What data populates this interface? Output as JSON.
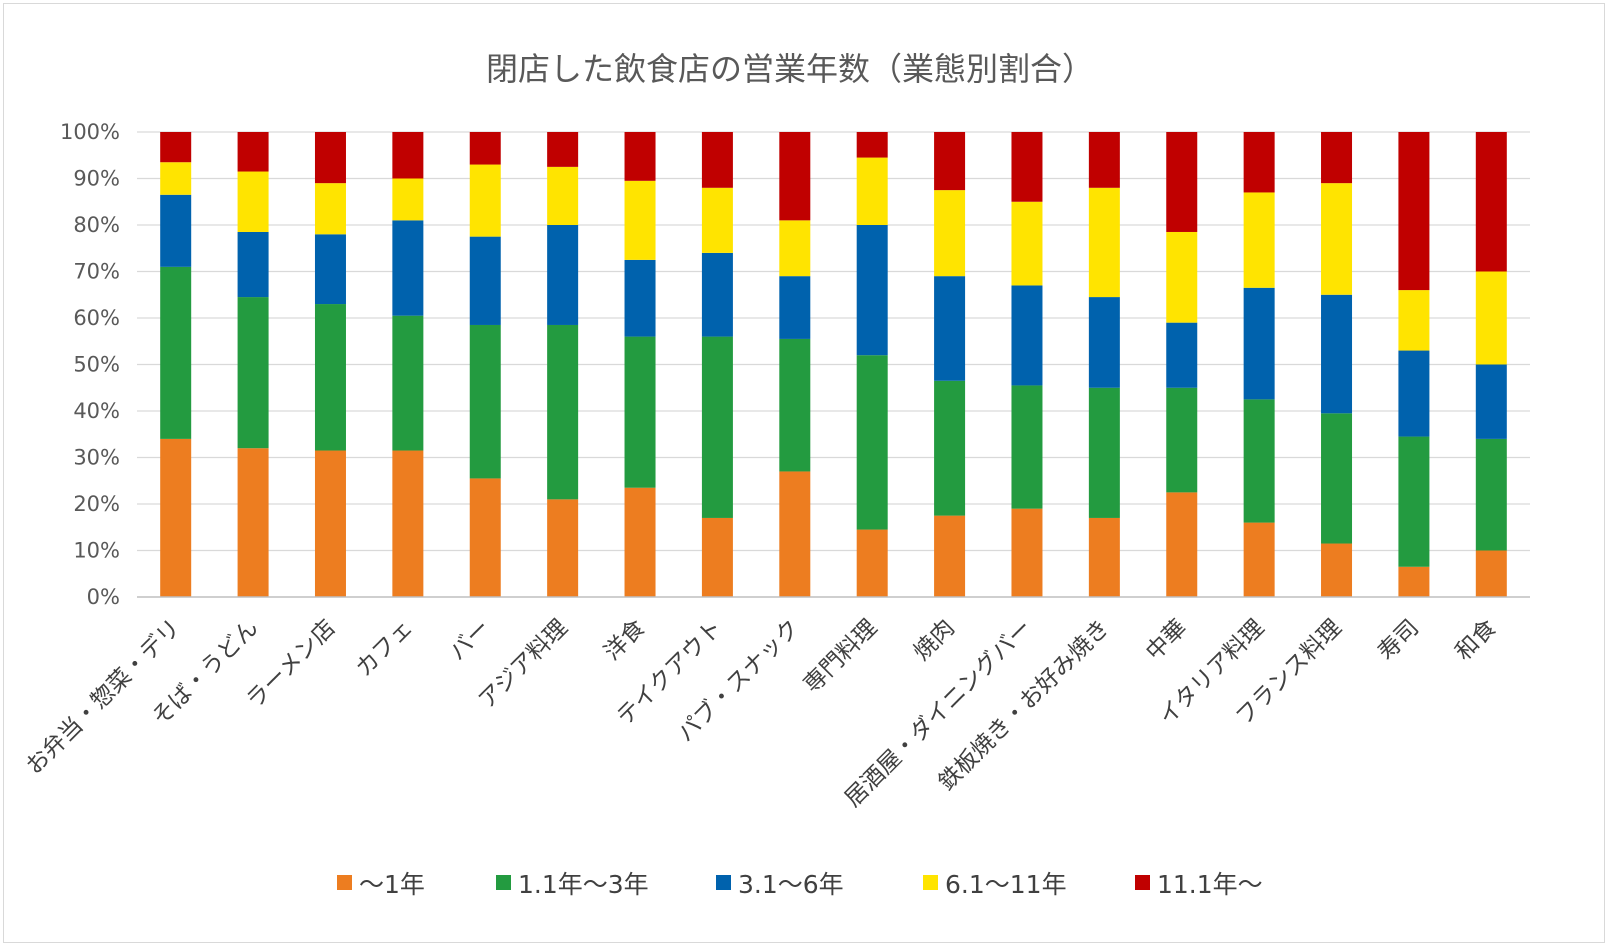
{
  "chart_data": {
    "type": "bar",
    "stacked": true,
    "percent": true,
    "title": "閉店した飲食店の営業年数（業態別割合）",
    "xlabel": "",
    "ylabel": "",
    "ylim": [
      0,
      100
    ],
    "yticks": [
      "0%",
      "10%",
      "20%",
      "30%",
      "40%",
      "50%",
      "60%",
      "70%",
      "80%",
      "90%",
      "100%"
    ],
    "grid": true,
    "legend_position": "bottom",
    "categories": [
      "お弁当・惣菜・デリ",
      "そば・うどん",
      "ラーメン店",
      "カフェ",
      "バー",
      "アジア料理",
      "洋食",
      "テイクアウト",
      "パブ・スナック",
      "専門料理",
      "焼肉",
      "居酒屋・ダイニングバー",
      "鉄板焼き・お好み焼き",
      "中華",
      "イタリア料理",
      "フランス料理",
      "寿司",
      "和食"
    ],
    "series": [
      {
        "name": "～1年",
        "color": "#ED7D20",
        "values": [
          34,
          32,
          31.5,
          31.5,
          25.5,
          21,
          23.5,
          17,
          27,
          14.5,
          17.5,
          19,
          17,
          22.5,
          16,
          11.5,
          6.5,
          10
        ]
      },
      {
        "name": "1.1年～3年",
        "color": "#239B40",
        "values": [
          37,
          32.5,
          31.5,
          29,
          33,
          37.5,
          32.5,
          39,
          28.5,
          37.5,
          29,
          26.5,
          28,
          22.5,
          26.5,
          28,
          28,
          24
        ]
      },
      {
        "name": "3.1～6年",
        "color": "#0062AD",
        "values": [
          15.5,
          14,
          15,
          20.5,
          19,
          21.5,
          16.5,
          18,
          13.5,
          28,
          22.5,
          21.5,
          19.5,
          14,
          24,
          25.5,
          18.5,
          16
        ]
      },
      {
        "name": "6.1～11年",
        "color": "#FFE400",
        "values": [
          7,
          13,
          11,
          9,
          15.5,
          12.5,
          17,
          14,
          12,
          14.5,
          18.5,
          18,
          23.5,
          19.5,
          20.5,
          24,
          13,
          20
        ]
      },
      {
        "name": "11.1年～",
        "color": "#C00000",
        "values": [
          6.5,
          8.5,
          11,
          10,
          7,
          7.5,
          10.5,
          12,
          19,
          5.5,
          12.5,
          15,
          12,
          21.5,
          13,
          11,
          34,
          30
        ]
      }
    ]
  }
}
